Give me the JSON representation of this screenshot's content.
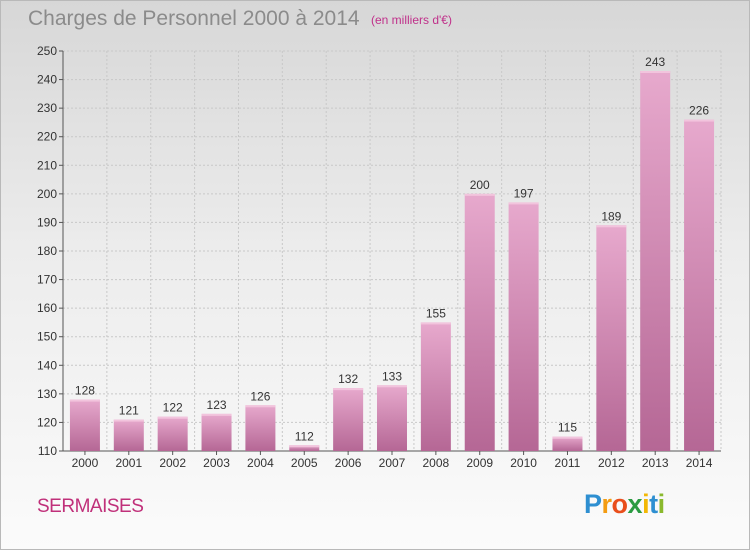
{
  "header": {
    "title": "Charges de Personnel 2000 à 2014",
    "subtitle": "(en milliers d'€)"
  },
  "footer": {
    "town": "SERMAISES",
    "logo_letters": [
      "P",
      "r",
      "o",
      "x",
      "i",
      "t",
      "i"
    ],
    "logo_colors": [
      "#2e8fd1",
      "#f39c12",
      "#e94e1b",
      "#2a9b41",
      "#f2b705",
      "#2e8fd1",
      "#8ab92d"
    ]
  },
  "chart_data": {
    "type": "bar",
    "title": "Charges de Personnel 2000 à 2014",
    "subtitle": "(en milliers d'€)",
    "categories": [
      "2000",
      "2001",
      "2002",
      "2003",
      "2004",
      "2005",
      "2006",
      "2007",
      "2008",
      "2009",
      "2010",
      "2011",
      "2012",
      "2013",
      "2014"
    ],
    "values": [
      128,
      121,
      122,
      123,
      126,
      112,
      132,
      133,
      155,
      200,
      197,
      115,
      189,
      243,
      226
    ],
    "ylim": [
      110,
      250
    ],
    "yticks": [
      110,
      120,
      130,
      140,
      150,
      160,
      170,
      180,
      190,
      200,
      210,
      220,
      230,
      240,
      250
    ],
    "grid": true,
    "bar_color": "#c4669d",
    "bar_color_light": "#e4a3ca"
  }
}
